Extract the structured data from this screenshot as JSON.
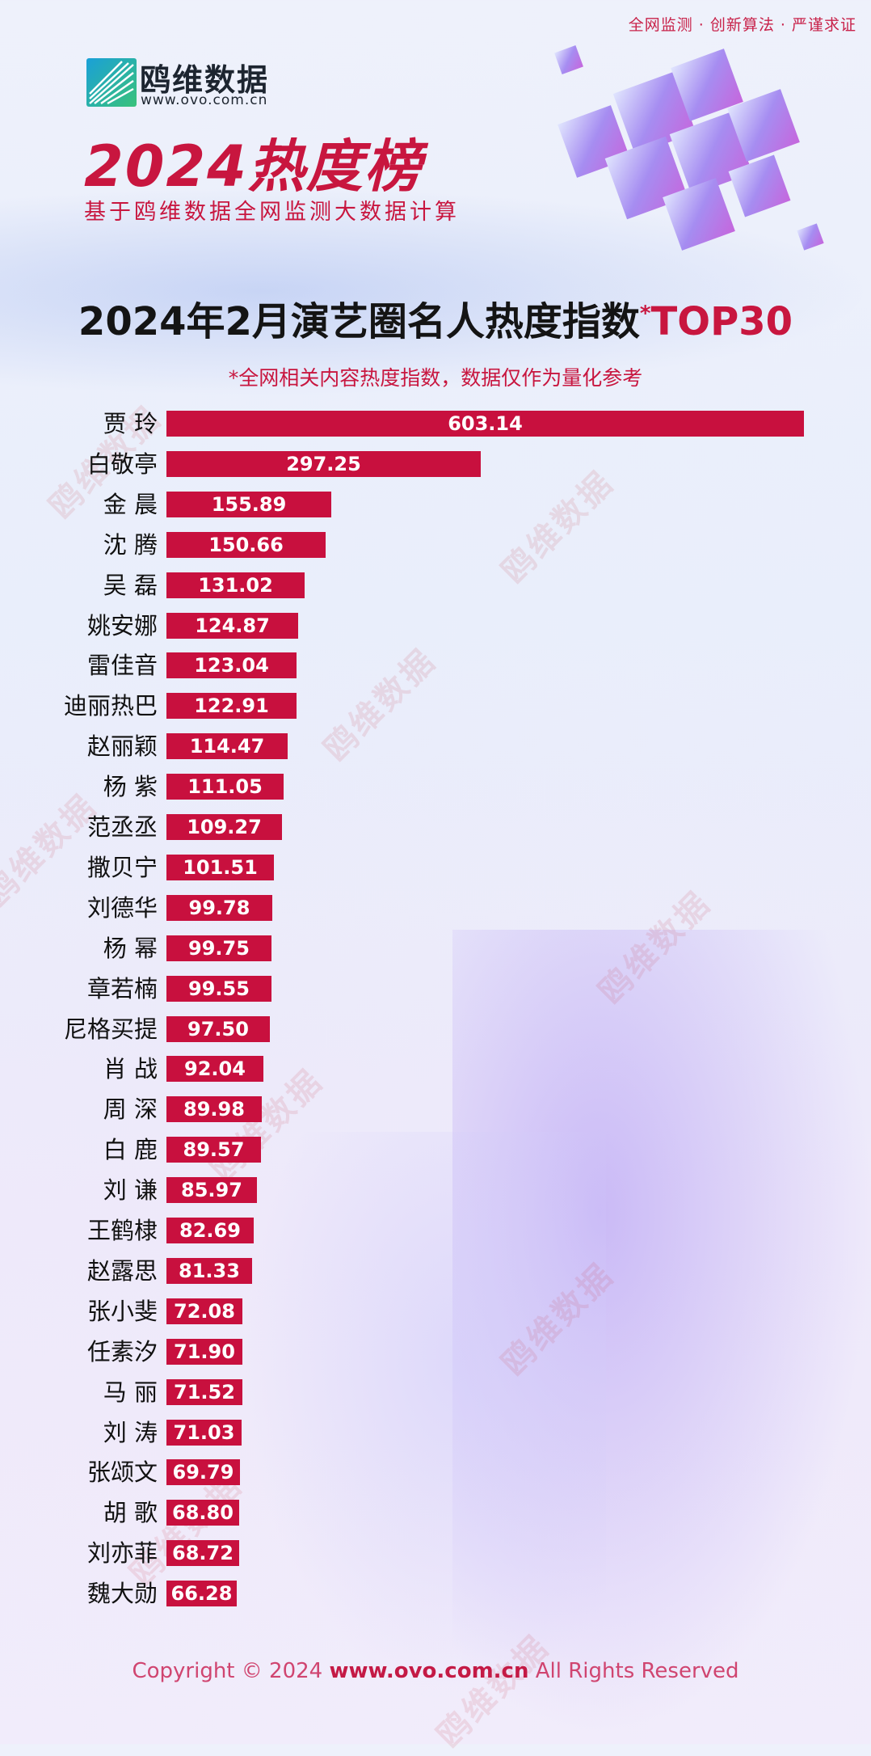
{
  "header": {
    "tagline": "全网监测 · 创新算法 · 严谨求证",
    "brand_name": "鸥维数据",
    "brand_url": "www.ovo.com.cn",
    "year_title": "2024热度榜",
    "subtitle": "基于鸥维数据全网监测大数据计算"
  },
  "watermark_text": "鸥维数据",
  "chart_data": {
    "type": "bar",
    "orientation": "horizontal",
    "title_main": "2024年2月演艺圈名人热度指数",
    "title_mark": "*",
    "title_suffix": "TOP30",
    "note": "*全网相关内容热度指数，数据仅作为量化参考",
    "color": "#c8103e",
    "categories": [
      "贾 玲",
      "白敬亭",
      "金 晨",
      "沈 腾",
      "吴 磊",
      "姚安娜",
      "雷佳音",
      "迪丽热巴",
      "赵丽颖",
      "杨 紫",
      "范丞丞",
      "撒贝宁",
      "刘德华",
      "杨 幂",
      "章若楠",
      "尼格买提",
      "肖 战",
      "周 深",
      "白 鹿",
      "刘 谦",
      "王鹤棣",
      "赵露思",
      "张小斐",
      "任素汐",
      "马 丽",
      "刘 涛",
      "张颂文",
      "胡 歌",
      "刘亦菲",
      "魏大勋"
    ],
    "values": [
      603.14,
      297.25,
      155.89,
      150.66,
      131.02,
      124.87,
      123.04,
      122.91,
      114.47,
      111.05,
      109.27,
      101.51,
      99.78,
      99.75,
      99.55,
      97.5,
      92.04,
      89.98,
      89.57,
      85.97,
      82.69,
      81.33,
      72.08,
      71.9,
      71.52,
      71.03,
      69.79,
      68.8,
      68.72,
      66.28
    ],
    "labels": [
      "603.14",
      "297.25",
      "155.89",
      "150.66",
      "131.02",
      "124.87",
      "123.04",
      "122.91",
      "114.47",
      "111.05",
      "109.27",
      "101.51",
      "99.78",
      "99.75",
      "99.55",
      "97.50",
      "92.04",
      "89.98",
      "89.57",
      "85.97",
      "82.69",
      "81.33",
      "72.08",
      "71.90",
      "71.52",
      "71.03",
      "69.79",
      "68.80",
      "68.72",
      "66.28"
    ]
  },
  "footer": {
    "copyright": "Copyright © 2024",
    "url": "www.ovo.com.cn",
    "rights": "All Rights Reserved"
  }
}
